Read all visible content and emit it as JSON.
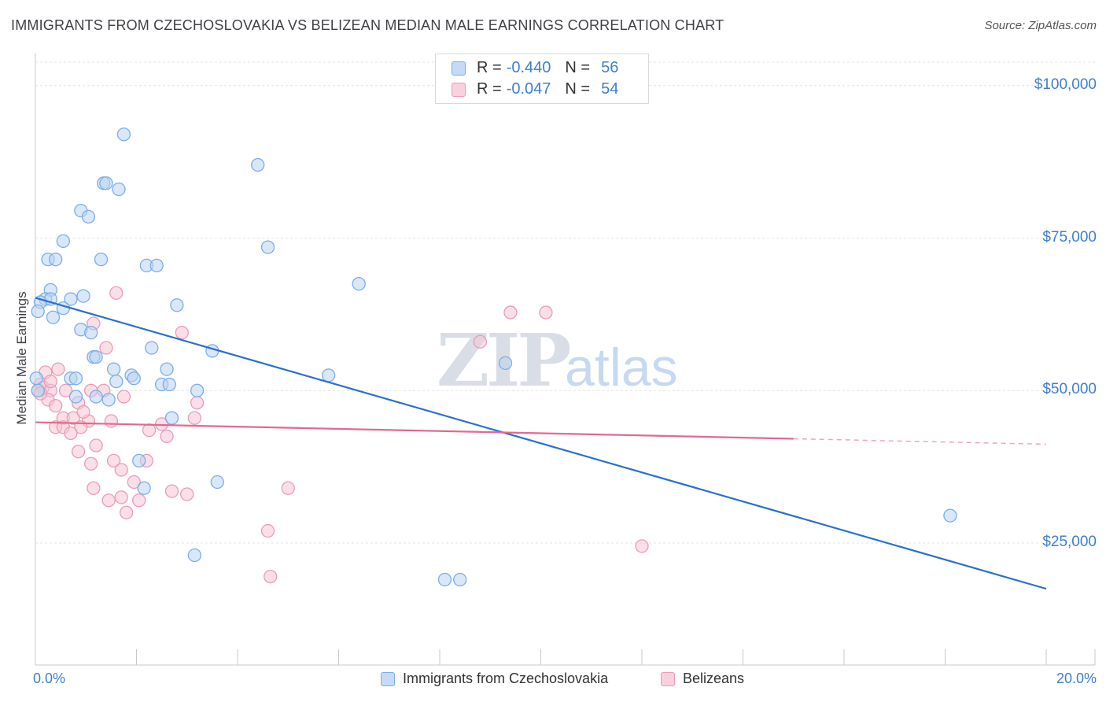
{
  "chart_data": {
    "type": "scatter",
    "title": "IMMIGRANTS FROM CZECHOSLOVAKIA VS BELIZEAN MEDIAN MALE EARNINGS CORRELATION CHART",
    "source": "Source: ZipAtlas.com",
    "ylabel": "Median Male Earnings",
    "xlabel": "",
    "xlim": [
      0,
      20
    ],
    "ylim": [
      5000,
      105000
    ],
    "x_tick_labels": [
      "0.0%",
      "20.0%"
    ],
    "y_ticks": [
      25000,
      50000,
      75000,
      100000
    ],
    "y_tick_labels": [
      "$25,000",
      "$50,000",
      "$75,000",
      "$100,000"
    ],
    "watermark": "ZIPatlas",
    "legend": {
      "rows": [
        {
          "r_label": "R =",
          "r_value": "-0.440",
          "n_label": "N =",
          "n_value": "56"
        },
        {
          "r_label": "R =",
          "r_value": "-0.047",
          "n_label": "N =",
          "n_value": "54"
        }
      ]
    },
    "series": [
      {
        "name": "Immigrants from Czechoslovakia",
        "color": "#7aaee6",
        "fill": "#b9d3f3",
        "trend_color": "#2a6fd1",
        "trend": {
          "x0": 0.0,
          "y0": 65200,
          "x1": 20.0,
          "y1": 17500,
          "solid_until": 20.0
        },
        "points": [
          [
            1.75,
            92000
          ],
          [
            4.4,
            87000
          ],
          [
            1.35,
            84000
          ],
          [
            1.4,
            84000
          ],
          [
            1.65,
            83000
          ],
          [
            0.9,
            79500
          ],
          [
            1.05,
            78500
          ],
          [
            0.55,
            74500
          ],
          [
            4.6,
            73500
          ],
          [
            0.25,
            71500
          ],
          [
            0.4,
            71500
          ],
          [
            1.3,
            71500
          ],
          [
            2.2,
            70500
          ],
          [
            2.4,
            70500
          ],
          [
            6.4,
            67500
          ],
          [
            0.3,
            66500
          ],
          [
            0.95,
            65500
          ],
          [
            0.2,
            65000
          ],
          [
            0.3,
            65000
          ],
          [
            0.7,
            65000
          ],
          [
            0.1,
            64500
          ],
          [
            0.55,
            63500
          ],
          [
            2.8,
            64000
          ],
          [
            0.05,
            63000
          ],
          [
            0.35,
            62000
          ],
          [
            0.9,
            60000
          ],
          [
            1.1,
            59500
          ],
          [
            2.3,
            57000
          ],
          [
            3.5,
            56500
          ],
          [
            1.15,
            55500
          ],
          [
            1.2,
            55500
          ],
          [
            1.55,
            53500
          ],
          [
            1.9,
            52500
          ],
          [
            2.6,
            53500
          ],
          [
            5.8,
            52500
          ],
          [
            9.3,
            54500
          ],
          [
            0.7,
            52000
          ],
          [
            0.8,
            52000
          ],
          [
            1.6,
            51500
          ],
          [
            1.95,
            52000
          ],
          [
            2.5,
            51000
          ],
          [
            2.65,
            51000
          ],
          [
            3.2,
            50000
          ],
          [
            0.8,
            49000
          ],
          [
            1.2,
            49000
          ],
          [
            1.45,
            48500
          ],
          [
            2.7,
            45500
          ],
          [
            2.05,
            38500
          ],
          [
            2.15,
            34000
          ],
          [
            3.6,
            35000
          ],
          [
            3.15,
            23000
          ],
          [
            8.1,
            19000
          ],
          [
            8.4,
            19000
          ],
          [
            18.1,
            29500
          ],
          [
            0.02,
            52000
          ],
          [
            0.05,
            50000
          ]
        ]
      },
      {
        "name": "Belizeans",
        "color": "#ea9bb6",
        "fill": "#f6c4d4",
        "trend_color": "#e4688f",
        "trend": {
          "x0": 0.0,
          "y0": 44800,
          "x1": 20.0,
          "y1": 41200,
          "solid_until": 15.0
        },
        "points": [
          [
            1.6,
            66000
          ],
          [
            9.4,
            62800
          ],
          [
            10.1,
            62800
          ],
          [
            1.15,
            61000
          ],
          [
            2.9,
            59500
          ],
          [
            8.8,
            58000
          ],
          [
            1.4,
            57000
          ],
          [
            0.45,
            53500
          ],
          [
            0.2,
            53000
          ],
          [
            0.1,
            51000
          ],
          [
            0.15,
            50500
          ],
          [
            0.3,
            50000
          ],
          [
            0.6,
            50000
          ],
          [
            1.1,
            50000
          ],
          [
            1.35,
            50000
          ],
          [
            1.75,
            49000
          ],
          [
            0.25,
            48500
          ],
          [
            0.85,
            48000
          ],
          [
            3.2,
            48000
          ],
          [
            0.4,
            47500
          ],
          [
            0.55,
            45500
          ],
          [
            0.75,
            45500
          ],
          [
            1.05,
            45000
          ],
          [
            1.5,
            45000
          ],
          [
            3.15,
            45500
          ],
          [
            2.5,
            44500
          ],
          [
            0.4,
            44000
          ],
          [
            0.55,
            44000
          ],
          [
            0.9,
            44000
          ],
          [
            2.25,
            43500
          ],
          [
            0.7,
            43000
          ],
          [
            1.2,
            41000
          ],
          [
            2.6,
            42500
          ],
          [
            0.85,
            40000
          ],
          [
            1.1,
            38000
          ],
          [
            1.55,
            38500
          ],
          [
            2.2,
            38500
          ],
          [
            1.7,
            37000
          ],
          [
            1.15,
            34000
          ],
          [
            1.95,
            35000
          ],
          [
            3.0,
            33000
          ],
          [
            5.0,
            34000
          ],
          [
            1.45,
            32000
          ],
          [
            1.7,
            32500
          ],
          [
            2.05,
            32000
          ],
          [
            1.8,
            30000
          ],
          [
            4.6,
            27000
          ],
          [
            12.0,
            24500
          ],
          [
            4.65,
            19500
          ],
          [
            0.05,
            50000
          ],
          [
            0.1,
            49500
          ],
          [
            0.3,
            51500
          ],
          [
            2.7,
            33500
          ],
          [
            0.95,
            46500
          ]
        ]
      }
    ]
  }
}
